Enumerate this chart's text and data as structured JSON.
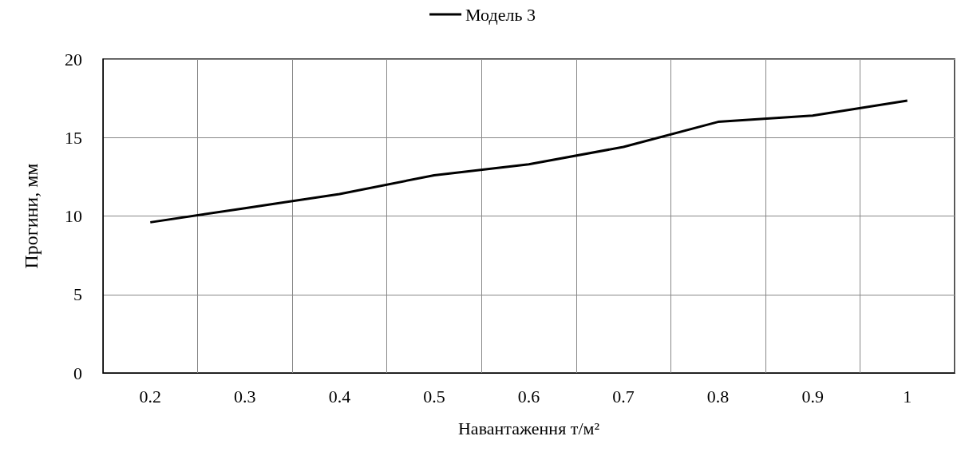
{
  "chart_data": {
    "type": "line",
    "xlabel": "Навантаження т/м²",
    "ylabel": "Прогини, мм",
    "categories": [
      "0.2",
      "0.3",
      "0.4",
      "0.5",
      "0.6",
      "0.7",
      "0.8",
      "0.9",
      "1"
    ],
    "series": [
      {
        "name": "Модель 3",
        "color": "#000000",
        "values": [
          9.6,
          10.5,
          11.4,
          12.6,
          13.3,
          14.4,
          16.0,
          16.4,
          17.35
        ]
      }
    ],
    "ylim": [
      0,
      20
    ],
    "yticks": [
      0,
      5,
      10,
      15,
      20
    ],
    "grid": true,
    "legend": "top",
    "marker": "none",
    "line_style": "solid"
  }
}
